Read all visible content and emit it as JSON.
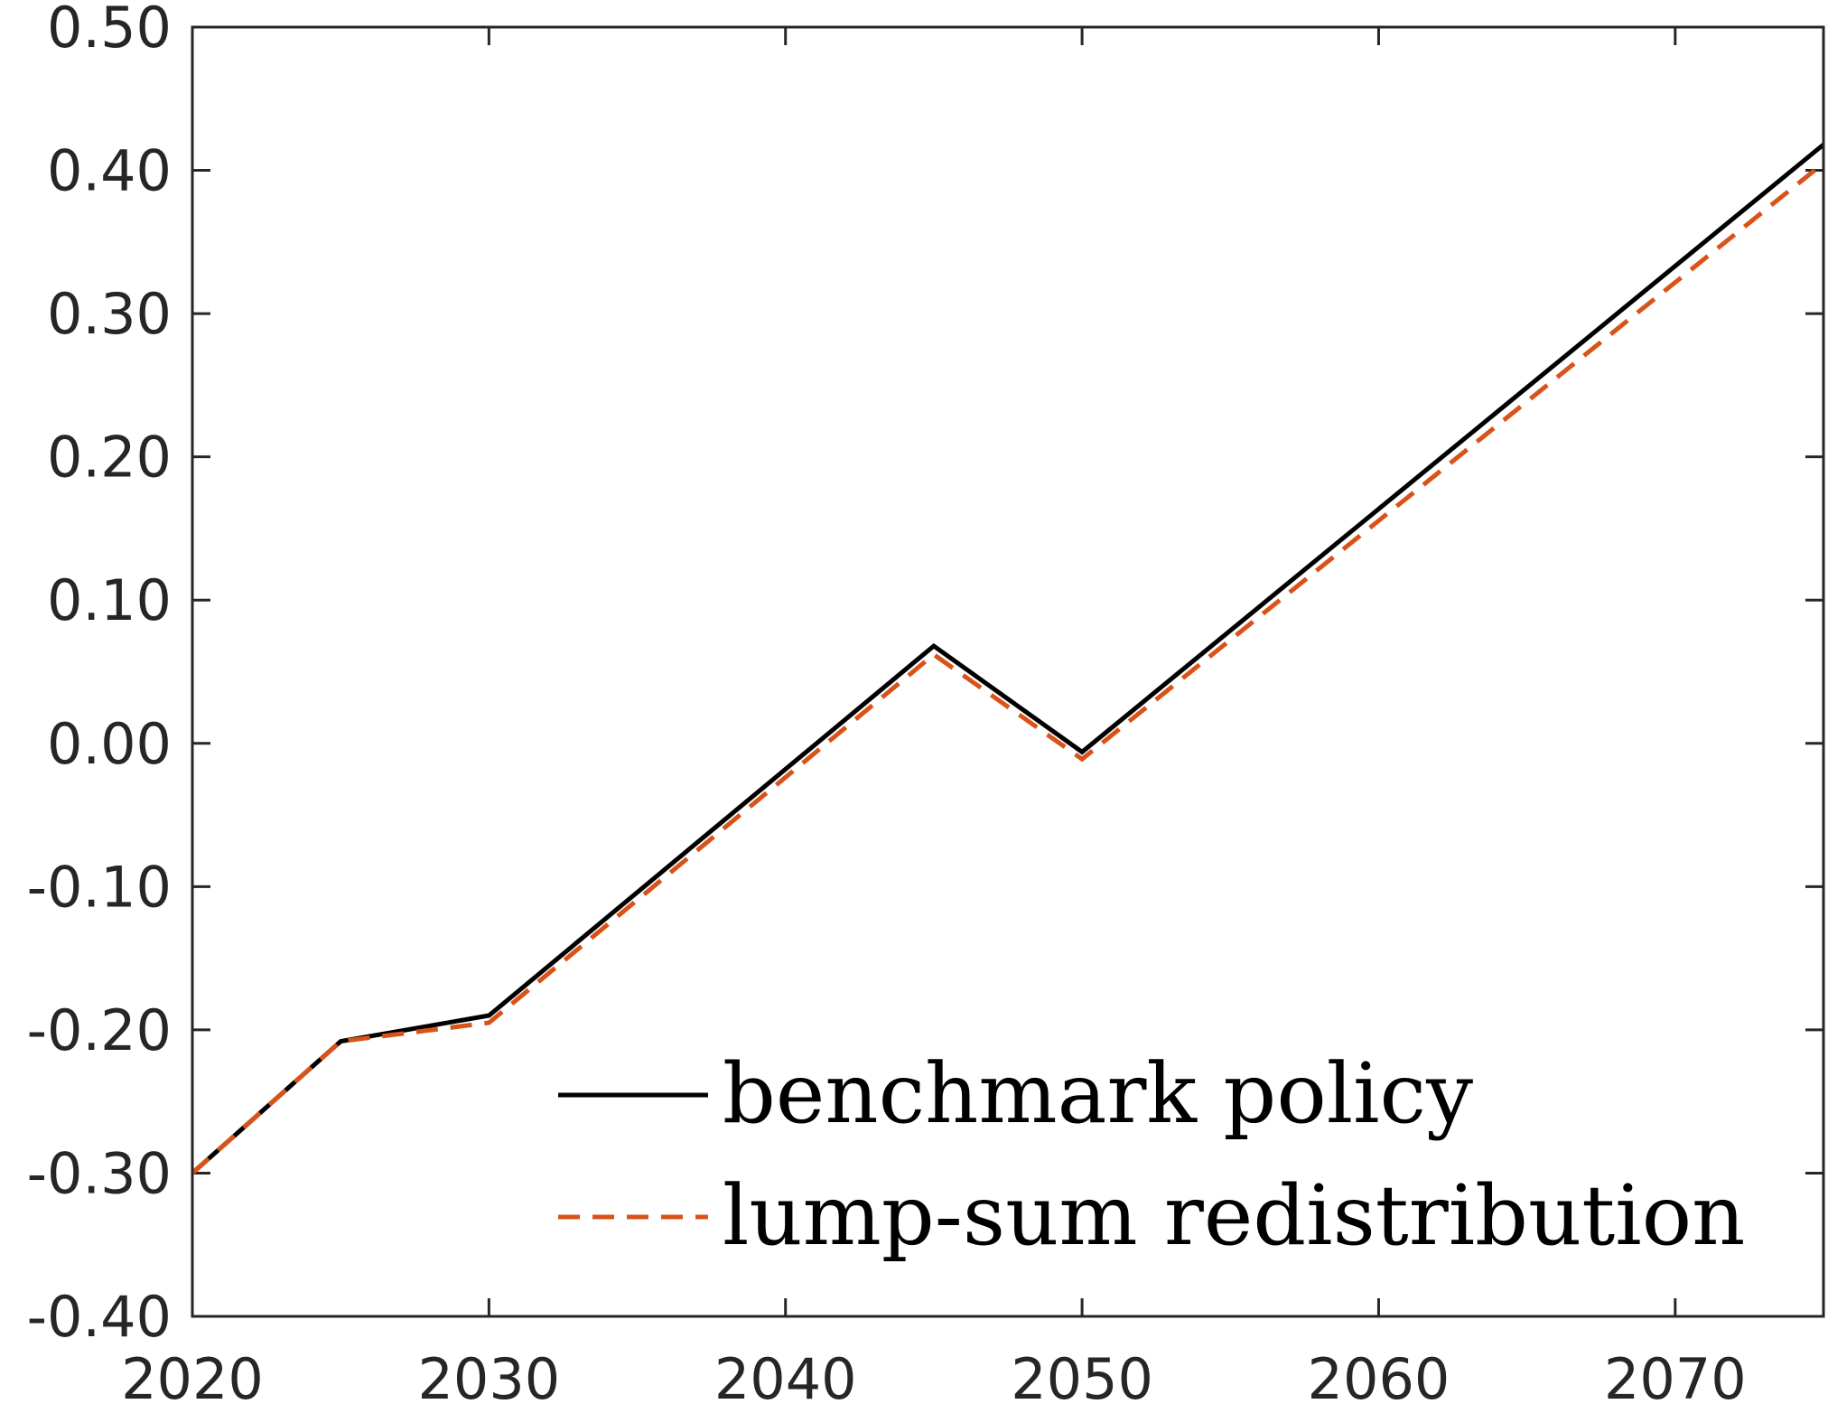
{
  "chart_data": {
    "type": "line",
    "title": "",
    "xlabel": "",
    "ylabel": "",
    "xlim": [
      2020,
      2075
    ],
    "ylim": [
      -0.4,
      0.5
    ],
    "xticks": [
      2020,
      2030,
      2040,
      2050,
      2060,
      2070
    ],
    "xtick_labels": [
      "2020",
      "2030",
      "2040",
      "2050",
      "2060",
      "2070"
    ],
    "yticks": [
      0.5,
      0.4,
      0.3,
      0.2,
      0.1,
      0.0,
      -0.1,
      -0.2,
      -0.3,
      -0.4
    ],
    "ytick_labels": [
      "0.50",
      "0.40",
      "0.30",
      "0.20",
      "0.10",
      "0.00",
      "-0.10",
      "-0.20",
      "-0.30",
      "-0.40"
    ],
    "grid": false,
    "legend_position": "bottom-right",
    "x": [
      2020,
      2025,
      2030,
      2045,
      2050,
      2075
    ],
    "series": [
      {
        "name": "benchmark policy",
        "color": "#000000",
        "style": "solid",
        "values": [
          -0.3,
          -0.208,
          -0.19,
          0.068,
          -0.006,
          0.418
        ]
      },
      {
        "name": "lump-sum redistribution",
        "color": "#D95319",
        "style": "dashed",
        "values": [
          -0.3,
          -0.208,
          -0.195,
          0.062,
          -0.011,
          0.405
        ]
      }
    ]
  }
}
